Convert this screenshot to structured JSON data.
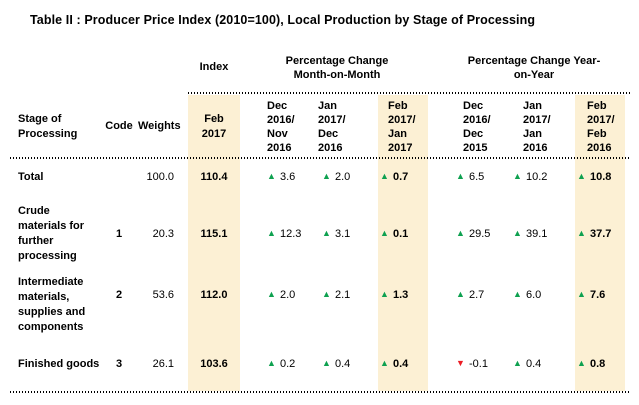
{
  "title": "Table II : Producer Price Index (2010=100),  Local Production by Stage of Processing",
  "colors": {
    "highlight": "#FCF0D4",
    "up": "#0EA150",
    "down": "#EC1C24"
  },
  "icons": {
    "up": "▲",
    "down": "▼"
  },
  "group_headers": {
    "index": "Index",
    "mom": "Percentage Change Month-on-Month",
    "yoy": "Percentage Change Year-on-Year"
  },
  "columns": {
    "stage": "Stage of Processing",
    "code": "Code",
    "weights": "Weights",
    "index_period": "Feb 2017",
    "mom_periods": [
      "Dec 2016/ Nov 2016",
      "Jan 2017/ Dec 2016",
      "Feb 2017/ Jan 2017"
    ],
    "yoy_periods": [
      "Dec 2016/ Dec 2015",
      "Jan 2017/ Jan 2016",
      "Feb 2017/ Feb 2016"
    ]
  },
  "rows": [
    {
      "label": "Total",
      "code": "",
      "weights": "100.0",
      "index": "110.4",
      "mom": [
        {
          "trend": "up",
          "value": "3.6"
        },
        {
          "trend": "up",
          "value": "2.0"
        },
        {
          "trend": "up",
          "value": "0.7"
        }
      ],
      "yoy": [
        {
          "trend": "up",
          "value": "6.5"
        },
        {
          "trend": "up",
          "value": "10.2"
        },
        {
          "trend": "up",
          "value": "10.8"
        }
      ]
    },
    {
      "label": "Crude materials for further processing",
      "code": "1",
      "weights": "20.3",
      "index": "115.1",
      "mom": [
        {
          "trend": "up",
          "value": "12.3"
        },
        {
          "trend": "up",
          "value": "3.1"
        },
        {
          "trend": "up",
          "value": "0.1"
        }
      ],
      "yoy": [
        {
          "trend": "up",
          "value": "29.5"
        },
        {
          "trend": "up",
          "value": "39.1"
        },
        {
          "trend": "up",
          "value": "37.7"
        }
      ]
    },
    {
      "label": "Intermediate materials, supplies and components",
      "code": "2",
      "weights": "53.6",
      "index": "112.0",
      "mom": [
        {
          "trend": "up",
          "value": "2.0"
        },
        {
          "trend": "up",
          "value": "2.1"
        },
        {
          "trend": "up",
          "value": "1.3"
        }
      ],
      "yoy": [
        {
          "trend": "up",
          "value": "2.7"
        },
        {
          "trend": "up",
          "value": "6.0"
        },
        {
          "trend": "up",
          "value": "7.6"
        }
      ]
    },
    {
      "label": "Finished goods",
      "code": "3",
      "weights": "26.1",
      "index": "103.6",
      "mom": [
        {
          "trend": "up",
          "value": "0.2"
        },
        {
          "trend": "up",
          "value": "0.4"
        },
        {
          "trend": "up",
          "value": "0.4"
        }
      ],
      "yoy": [
        {
          "trend": "down",
          "value": "-0.1"
        },
        {
          "trend": "up",
          "value": "0.4"
        },
        {
          "trend": "up",
          "value": "0.8"
        }
      ]
    }
  ]
}
